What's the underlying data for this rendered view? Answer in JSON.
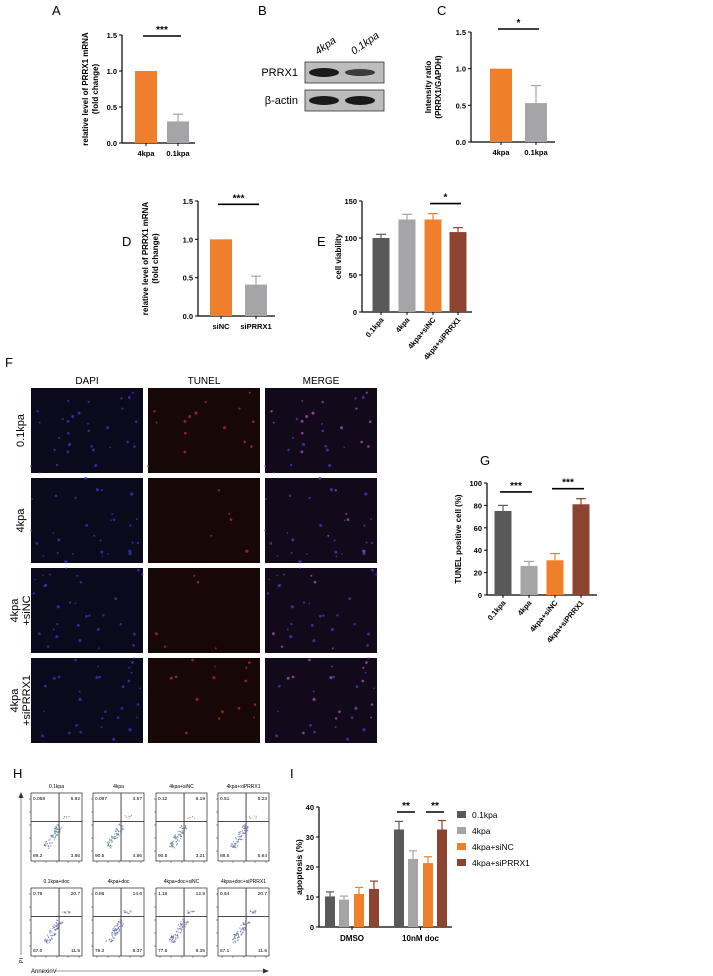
{
  "colors": {
    "dark_gray": "#595959",
    "light_gray": "#a5a5a7",
    "orange": "#f07f2c",
    "brown": "#8c4431"
  },
  "panel_labels": {
    "A": "A",
    "B": "B",
    "C": "C",
    "D": "D",
    "E": "E",
    "F": "F",
    "G": "G",
    "H": "H",
    "I": "I"
  },
  "chart_data": [
    {
      "id": "A",
      "type": "bar",
      "ylabel": "relative level of PRRX1 mRNA\n(fold change)",
      "ylim": [
        0,
        1.5
      ],
      "yticks": [
        "0.0",
        "0.5",
        "1.0",
        "1.5"
      ],
      "categories": [
        "4kpa",
        "0.1kpa"
      ],
      "values": [
        1.0,
        0.3
      ],
      "errors": [
        0,
        0.1
      ],
      "bar_colors": [
        "orange",
        "light_gray"
      ],
      "significance": [
        {
          "between": [
            0,
            1
          ],
          "label": "***"
        }
      ]
    },
    {
      "id": "C",
      "type": "bar",
      "ylabel": "Intensity ratio\n(PRRX1/GAPDH)",
      "ylim": [
        0,
        1.5
      ],
      "yticks": [
        "0.0",
        "0.5",
        "1.0",
        "1.5"
      ],
      "categories": [
        "4kpa",
        "0.1kpa"
      ],
      "values": [
        1.0,
        0.53
      ],
      "errors": [
        0,
        0.24
      ],
      "bar_colors": [
        "orange",
        "light_gray"
      ],
      "significance": [
        {
          "between": [
            0,
            1
          ],
          "label": "*"
        }
      ]
    },
    {
      "id": "D",
      "type": "bar",
      "ylabel": "relative level of PRRX1 mRNA\n(fold change)",
      "ylim": [
        0,
        1.5
      ],
      "yticks": [
        "0.0",
        "0.5",
        "1.0",
        "1.5"
      ],
      "categories": [
        "siNC",
        "siPRRX1"
      ],
      "values": [
        1.0,
        0.41
      ],
      "errors": [
        0,
        0.11
      ],
      "bar_colors": [
        "orange",
        "light_gray"
      ],
      "significance": [
        {
          "between": [
            0,
            1
          ],
          "label": "***"
        }
      ]
    },
    {
      "id": "E",
      "type": "bar",
      "ylabel": "cell viability",
      "ylim": [
        0,
        150
      ],
      "yticks": [
        "0",
        "50",
        "100",
        "150"
      ],
      "categories": [
        "0.1kpa",
        "4kpa",
        "4kpa+siNC",
        "4kpa+siPRRX1"
      ],
      "values": [
        100,
        125,
        125,
        108
      ],
      "errors": [
        5,
        7,
        8,
        6
      ],
      "bar_colors": [
        "dark_gray",
        "light_gray",
        "orange",
        "brown"
      ],
      "significance": [
        {
          "between": [
            2,
            3
          ],
          "label": "*"
        }
      ]
    },
    {
      "id": "G",
      "type": "bar",
      "ylabel": "TUNEL positive cell (%)",
      "ylim": [
        0,
        100
      ],
      "yticks": [
        "0",
        "20",
        "40",
        "60",
        "80",
        "100"
      ],
      "categories": [
        "0.1kpa",
        "4kpa",
        "4kpa+siNC",
        "4kpa+siPRRX1"
      ],
      "values": [
        75,
        26,
        31,
        81
      ],
      "errors": [
        5,
        4,
        6,
        5
      ],
      "bar_colors": [
        "dark_gray",
        "light_gray",
        "orange",
        "brown"
      ],
      "significance": [
        {
          "between": [
            0,
            1
          ],
          "label": "***"
        },
        {
          "between": [
            2,
            3
          ],
          "label": "***"
        }
      ]
    },
    {
      "id": "I",
      "type": "bar",
      "ylabel": "apoptosis (%)",
      "ylim": [
        0,
        40
      ],
      "yticks": [
        "0",
        "10",
        "20",
        "30",
        "40"
      ],
      "categories": [
        "DMSO",
        "10nM doc"
      ],
      "series": [
        {
          "name": "0.1kpa",
          "color": "dark_gray",
          "values": [
            10.2,
            32.5
          ],
          "errors": [
            1.5,
            2.7
          ]
        },
        {
          "name": "4kpa",
          "color": "light_gray",
          "values": [
            9.1,
            22.7
          ],
          "errors": [
            1.2,
            2.7
          ]
        },
        {
          "name": "4kpa+siNC",
          "color": "orange",
          "values": [
            11.0,
            21.3
          ],
          "errors": [
            2.2,
            2.1
          ]
        },
        {
          "name": "4kpa+siPRRX1",
          "color": "brown",
          "values": [
            12.7,
            32.5
          ],
          "errors": [
            2.6,
            3.0
          ]
        }
      ],
      "legend": "right",
      "significance": [
        {
          "group": 1,
          "between": [
            0,
            1
          ],
          "label": "**"
        },
        {
          "group": 1,
          "between": [
            2,
            3
          ],
          "label": "**"
        }
      ]
    }
  ],
  "western_blot": {
    "lanes": [
      "4kpa",
      "0.1kpa"
    ],
    "rows": [
      {
        "label": "PRRX1",
        "intensity": [
          1.0,
          0.55
        ]
      },
      {
        "label": "β-actin",
        "intensity": [
          1.0,
          1.0
        ]
      }
    ]
  },
  "tunel": {
    "columns": [
      "DAPI",
      "TUNEL",
      "MERGE"
    ],
    "rows": [
      "0.1kpa",
      "4kpa",
      "4kpa\n+siNC",
      "4kpa\n+siPRRX1"
    ]
  },
  "flow": {
    "x_axis": "AnnexinV",
    "y_axis": "PI",
    "plots": [
      {
        "title": "0.1kpa",
        "q": [
          "0.058",
          "6.92",
          "89.2",
          "3.86"
        ]
      },
      {
        "title": "4kpa",
        "q": [
          "0.097",
          "4.57",
          "90.5",
          "4.86"
        ]
      },
      {
        "title": "4kpa+siNC",
        "q": [
          "0.12",
          "6.19",
          "90.5",
          "3.21"
        ]
      },
      {
        "title": "4kpa+siPRRX1",
        "q": [
          "0.51",
          "5.23",
          "88.6",
          "5.64"
        ]
      },
      {
        "title": "0.1kpa+doc",
        "q": [
          "0.78",
          "20.7",
          "67.0",
          "11.5"
        ]
      },
      {
        "title": "4kpa+doc",
        "q": [
          "0.86",
          "14.6",
          "76.2",
          "8.37"
        ]
      },
      {
        "title": "4kpa+doc+siNC",
        "q": [
          "1.19",
          "12.9",
          "77.5",
          "8.35"
        ]
      },
      {
        "title": "4kpa+doc+siPRRX1",
        "q": [
          "0.64",
          "20.7",
          "67.1",
          "11.6"
        ]
      }
    ]
  }
}
